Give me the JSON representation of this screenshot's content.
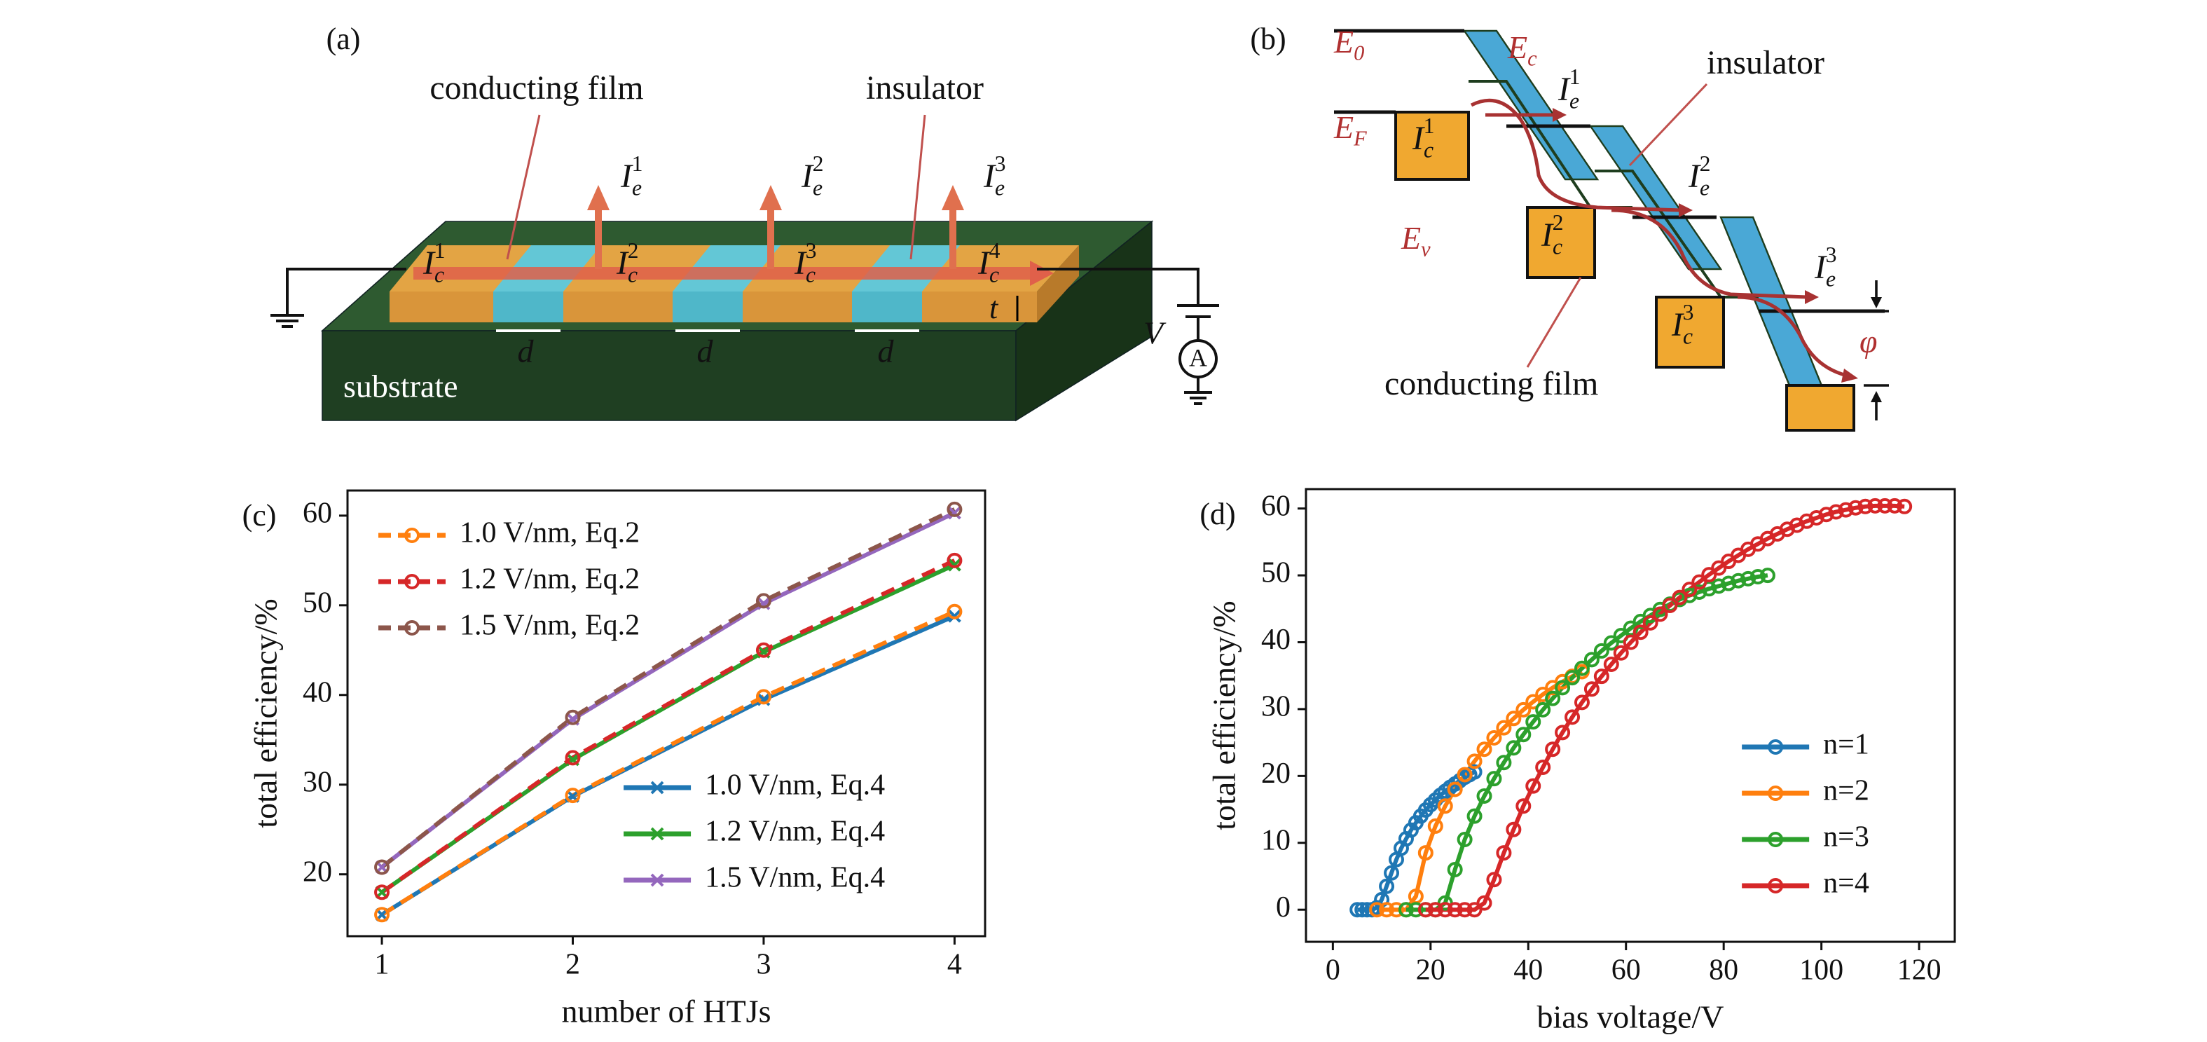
{
  "panel_a": {
    "label": "(a)",
    "conducting_film": "conducting film",
    "insulator": "insulator",
    "substrate": "substrate",
    "emission_currents": [
      {
        "base": "I",
        "sub": "e",
        "sup": "1"
      },
      {
        "base": "I",
        "sub": "e",
        "sup": "2"
      },
      {
        "base": "I",
        "sub": "e",
        "sup": "3"
      }
    ],
    "film_currents": [
      {
        "base": "I",
        "sub": "c",
        "sup": "1"
      },
      {
        "base": "I",
        "sub": "c",
        "sup": "2"
      },
      {
        "base": "I",
        "sub": "c",
        "sup": "3"
      },
      {
        "base": "I",
        "sub": "c",
        "sup": "4"
      }
    ],
    "gap_labels": [
      "d",
      "d",
      "d"
    ],
    "thickness": "t",
    "voltage": "V",
    "ammeter": "A"
  },
  "panel_b": {
    "label": "(b)",
    "vacuum_level": {
      "base": "E",
      "sub": "0"
    },
    "conduction_band": {
      "base": "E",
      "sub": "c"
    },
    "fermi_level": {
      "base": "E",
      "sub": "F"
    },
    "valence_band": {
      "base": "E",
      "sub": "v"
    },
    "emission_currents": [
      {
        "base": "I",
        "sub": "e",
        "sup": "1"
      },
      {
        "base": "I",
        "sub": "e",
        "sup": "2"
      },
      {
        "base": "I",
        "sub": "e",
        "sup": "3"
      }
    ],
    "film_currents": [
      {
        "base": "I",
        "sub": "c",
        "sup": "1"
      },
      {
        "base": "I",
        "sub": "c",
        "sup": "2"
      },
      {
        "base": "I",
        "sub": "c",
        "sup": "3"
      }
    ],
    "insulator": "insulator",
    "conducting_film": "conducting film",
    "barrier": "φ"
  },
  "chart_data": [
    {
      "type": "line",
      "panel": "(c)",
      "x_label": "number of HTJs",
      "y_label": "total efficiency/%",
      "x": [
        1,
        2,
        3,
        4
      ],
      "xlim": [
        0.82,
        4.16
      ],
      "xticks": [
        1,
        2,
        3,
        4
      ],
      "ylim": [
        13.1,
        62.8
      ],
      "yticks": [
        20,
        30,
        40,
        50,
        60
      ],
      "series": [
        {
          "name": "1.0 V/nm, Eq.4",
          "color": "#1f77b4",
          "dashed": false,
          "marker": "x",
          "legend": "lower right",
          "values": [
            15.5,
            28.7,
            39.5,
            48.8
          ]
        },
        {
          "name": "1.2 V/nm, Eq.4",
          "color": "#2ca02c",
          "dashed": false,
          "marker": "x",
          "legend": "lower right",
          "values": [
            18.0,
            32.8,
            44.8,
            54.5
          ]
        },
        {
          "name": "1.5 V/nm, Eq.4",
          "color": "#9467bd",
          "dashed": false,
          "marker": "x",
          "legend": "lower right",
          "values": [
            20.8,
            37.3,
            50.2,
            60.3
          ]
        },
        {
          "name": "1.0 V/nm, Eq.2",
          "color": "#ff7f0e",
          "dashed": true,
          "marker": "o",
          "legend": "upper left",
          "values": [
            15.5,
            28.8,
            39.8,
            49.3
          ]
        },
        {
          "name": "1.2 V/nm, Eq.2",
          "color": "#d62728",
          "dashed": true,
          "marker": "o",
          "legend": "upper left",
          "values": [
            18.0,
            33.0,
            45.0,
            55.0
          ]
        },
        {
          "name": "1.5 V/nm, Eq.2",
          "color": "#8c564b",
          "dashed": true,
          "marker": "o",
          "legend": "upper left",
          "values": [
            20.8,
            37.5,
            50.5,
            60.7
          ]
        }
      ]
    },
    {
      "type": "line",
      "panel": "(d)",
      "x_label": "bias voltage/V",
      "y_label": "total efficiency/%",
      "xlim": [
        -5.5,
        127.3
      ],
      "xticks": [
        0,
        20,
        40,
        60,
        80,
        100,
        120
      ],
      "ylim": [
        -4.8,
        62.9
      ],
      "yticks": [
        0,
        10,
        20,
        30,
        40,
        50,
        60
      ],
      "legend": "lower right",
      "series": [
        {
          "name": "n=1",
          "color": "#1f77b4",
          "dashed": false,
          "marker": "o",
          "x": [
            5,
            6,
            7,
            8,
            9,
            10,
            11,
            12,
            13,
            14,
            15,
            16,
            17,
            18,
            19,
            20,
            21,
            22,
            23,
            24,
            25,
            26,
            27,
            28,
            29
          ],
          "values": [
            0,
            0,
            0,
            0,
            0.3,
            1.5,
            3.5,
            5.5,
            7.5,
            9.2,
            10.6,
            11.9,
            13,
            14,
            14.9,
            15.7,
            16.4,
            17.1,
            17.7,
            18.3,
            18.8,
            19.3,
            19.8,
            20.2,
            20.6
          ]
        },
        {
          "name": "n=2",
          "color": "#ff7f0e",
          "dashed": false,
          "marker": "o",
          "x": [
            9,
            11,
            13,
            15,
            17,
            19,
            21,
            23,
            25,
            27,
            29,
            31,
            33,
            35,
            37,
            39,
            41,
            43,
            45,
            47,
            49,
            51
          ],
          "values": [
            0,
            0,
            0,
            0,
            2,
            8.5,
            12.5,
            15.5,
            18,
            20.2,
            22.2,
            24,
            25.7,
            27.2,
            28.6,
            29.9,
            31.1,
            32.2,
            33.2,
            34.1,
            34.9,
            35.6
          ]
        },
        {
          "name": "n=3",
          "color": "#2ca02c",
          "dashed": false,
          "marker": "o",
          "x": [
            15,
            17,
            19,
            21,
            23,
            25,
            27,
            29,
            31,
            33,
            35,
            37,
            39,
            41,
            43,
            45,
            47,
            49,
            51,
            53,
            55,
            57,
            59,
            61,
            63,
            65,
            67,
            69,
            71,
            73,
            75,
            77,
            79,
            81,
            83,
            85,
            87,
            89
          ],
          "values": [
            0,
            0,
            0,
            0,
            1,
            6,
            10.5,
            14,
            17,
            19.6,
            22,
            24.2,
            26.2,
            28.1,
            29.9,
            31.6,
            33.2,
            34.7,
            36.1,
            37.4,
            38.7,
            39.9,
            41,
            42.1,
            43.1,
            44,
            44.9,
            45.7,
            46.4,
            47,
            47.5,
            48,
            48.4,
            48.8,
            49.2,
            49.5,
            49.8,
            50
          ]
        },
        {
          "name": "n=4",
          "color": "#d62728",
          "dashed": false,
          "marker": "o",
          "x": [
            19,
            21,
            23,
            25,
            27,
            29,
            31,
            33,
            35,
            37,
            39,
            41,
            43,
            45,
            47,
            49,
            51,
            53,
            55,
            57,
            59,
            61,
            63,
            65,
            67,
            69,
            71,
            73,
            75,
            77,
            79,
            81,
            83,
            85,
            87,
            89,
            91,
            93,
            95,
            97,
            99,
            101,
            103,
            105,
            107,
            109,
            111,
            113,
            115,
            117
          ],
          "values": [
            0,
            0,
            0,
            0,
            0,
            0,
            1,
            4.5,
            8.5,
            12,
            15.5,
            18.5,
            21.3,
            24,
            26.5,
            28.8,
            31,
            33,
            34.9,
            36.7,
            38.4,
            40,
            41.5,
            42.9,
            44.2,
            45.5,
            46.7,
            47.9,
            49,
            50.1,
            51.1,
            52.1,
            53,
            53.9,
            54.7,
            55.5,
            56.2,
            56.9,
            57.5,
            58.1,
            58.6,
            59.1,
            59.5,
            59.8,
            60.1,
            60.3,
            60.4,
            60.4,
            60.4,
            60.3
          ]
        }
      ]
    }
  ]
}
